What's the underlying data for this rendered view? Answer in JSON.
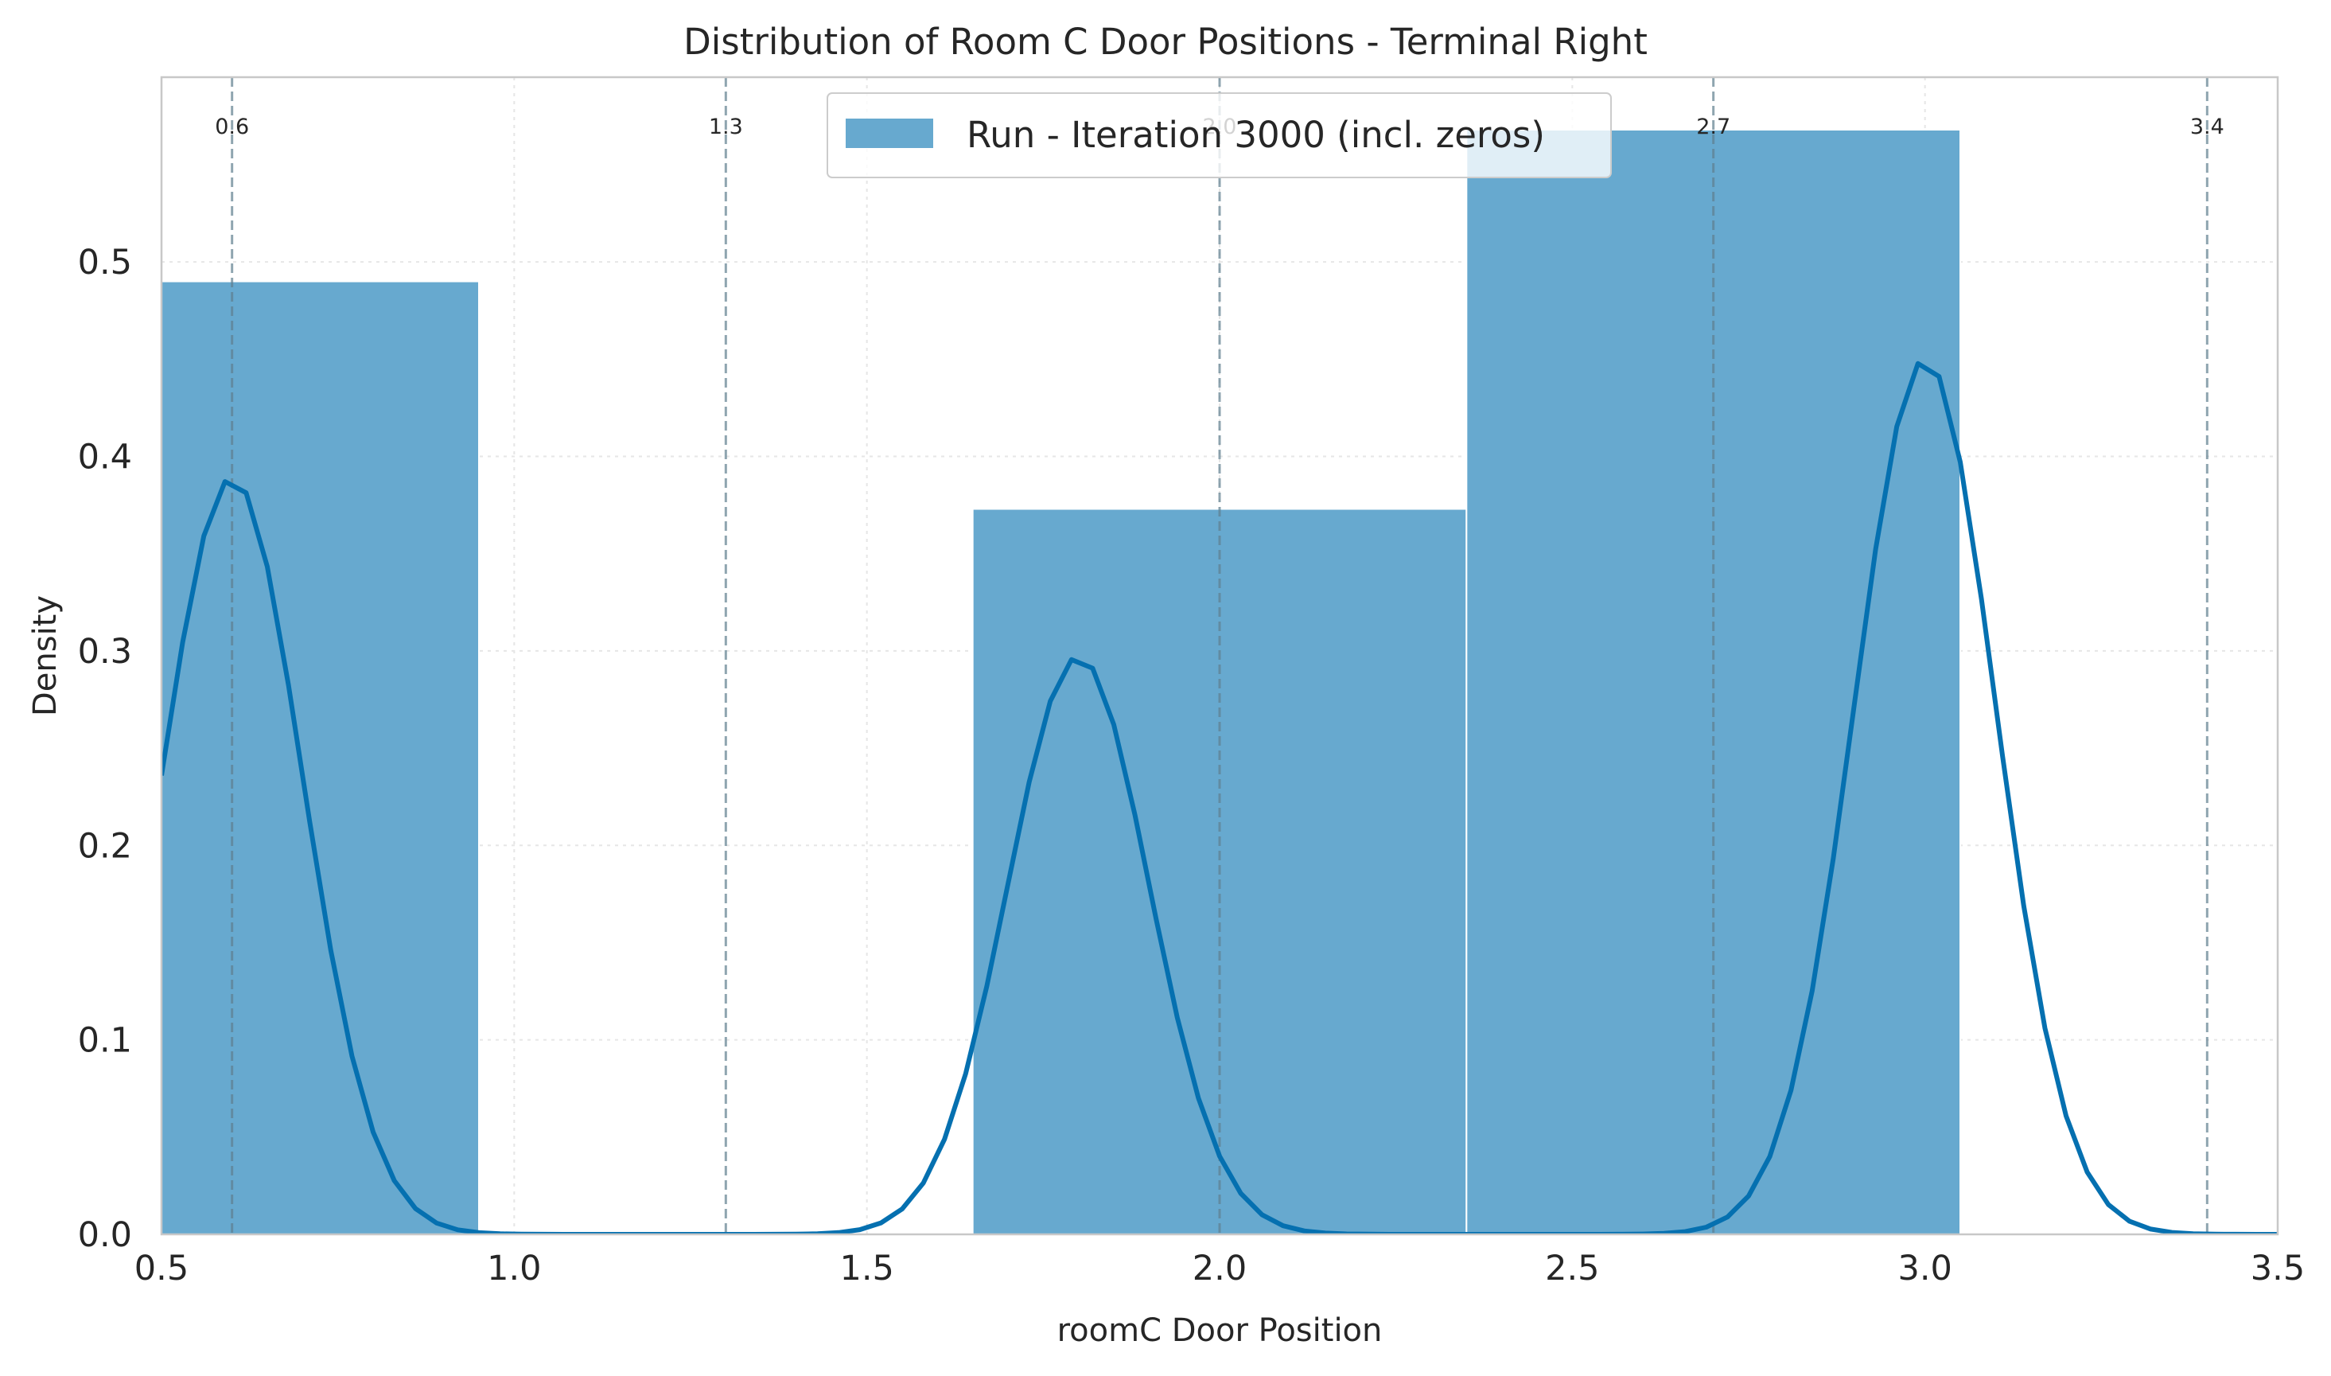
{
  "chart_data": {
    "type": "bar",
    "title": "Distribution of Room C Door Positions - Terminal Right",
    "xlabel": "roomC Door Position",
    "ylabel": "Density",
    "xlim": [
      0.5,
      3.5
    ],
    "ylim": [
      0,
      0.595
    ],
    "x_ticks": [
      "0.5",
      "1.0",
      "1.5",
      "2.0",
      "2.5",
      "3.0",
      "3.5"
    ],
    "y_ticks": [
      "0.0",
      "0.1",
      "0.2",
      "0.3",
      "0.4",
      "0.5"
    ],
    "x_tick_values": [
      0.5,
      1.0,
      1.5,
      2.0,
      2.5,
      3.0,
      3.5
    ],
    "y_tick_values": [
      0.0,
      0.1,
      0.2,
      0.3,
      0.4,
      0.5
    ],
    "grid": true,
    "legend_position": "top-center",
    "bar_color": "#67a9cf",
    "line_color": "#0570b0",
    "histogram": {
      "name": "Run - Iteration 3000 (incl. zeros)",
      "bins": [
        {
          "x0": 0.25,
          "x1": 0.95,
          "density": 0.49
        },
        {
          "x0": 1.65,
          "x1": 2.35,
          "density": 0.373
        },
        {
          "x0": 2.35,
          "x1": 3.05,
          "density": 0.568
        }
      ]
    },
    "kde": {
      "peaks": [
        {
          "mu": 0.6,
          "sigma": 0.1,
          "height": 0.389
        },
        {
          "mu": 1.8,
          "sigma": 0.1,
          "height": 0.297
        },
        {
          "mu": 3.0,
          "sigma": 0.1,
          "height": 0.45
        }
      ]
    },
    "vlines": [
      {
        "x": 0.6,
        "label": "0.6"
      },
      {
        "x": 1.3,
        "label": "1.3"
      },
      {
        "x": 2.0,
        "label": "2.0"
      },
      {
        "x": 2.7,
        "label": "2.7"
      },
      {
        "x": 3.4,
        "label": "3.4"
      }
    ]
  }
}
